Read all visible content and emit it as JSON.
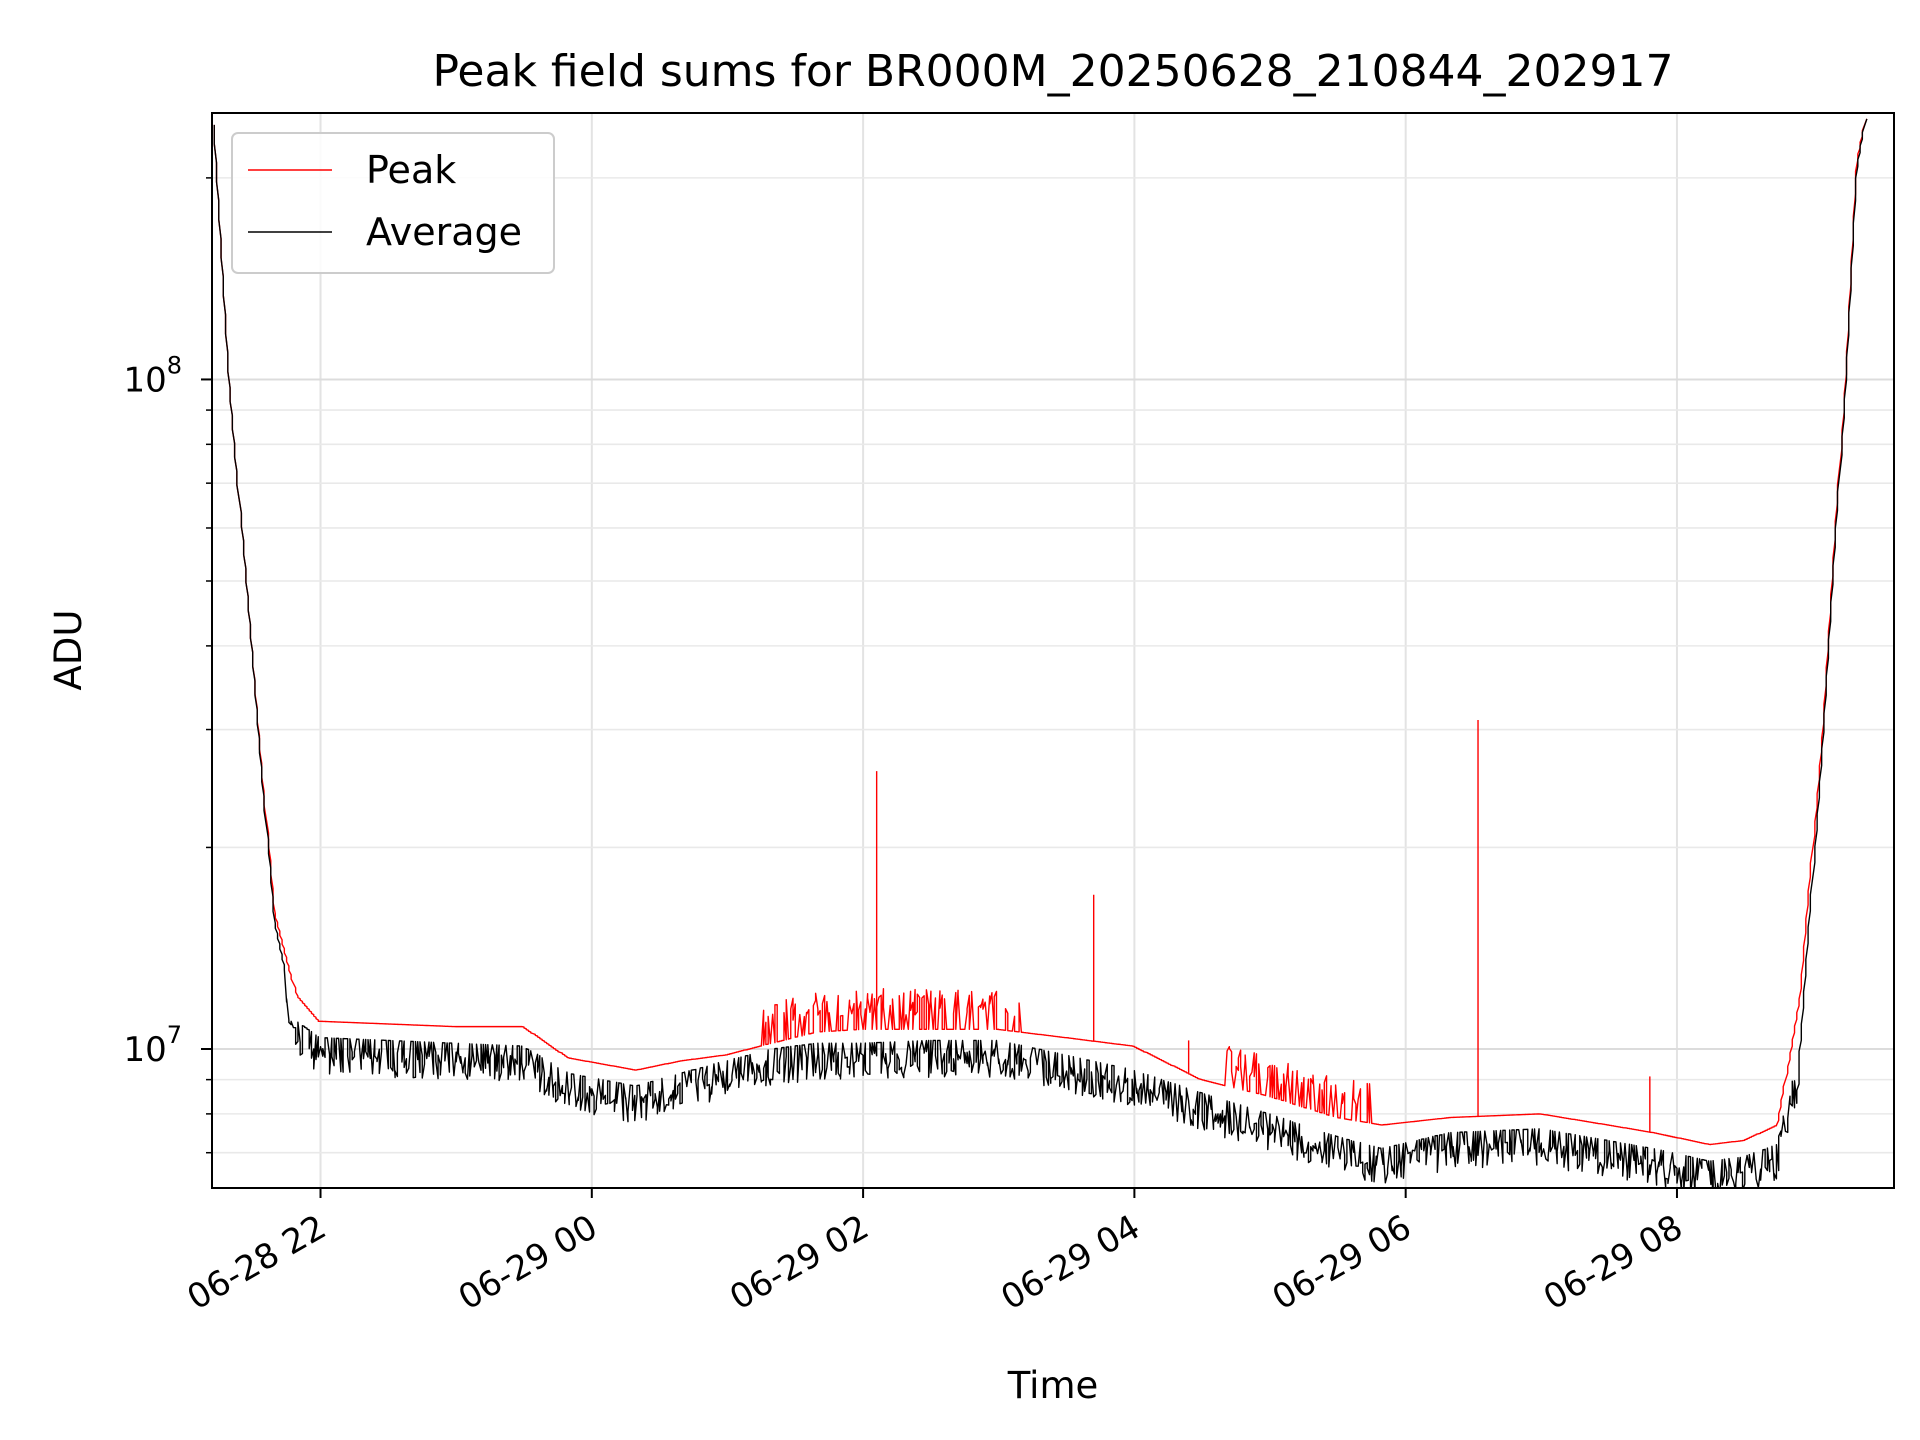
{
  "chart_data": {
    "type": "line",
    "title": "Peak field sums for BR000M_20250628_210844_202917",
    "xlabel": "Time",
    "ylabel": "ADU",
    "y_scale": "log",
    "ylim": [
      6200000,
      250000000
    ],
    "xlim": [
      "2025-06-28 21:12",
      "2025-06-29 09:36"
    ],
    "grid": true,
    "legend": {
      "placement": "top-left",
      "entries": [
        "Peak",
        "Average"
      ]
    },
    "x_ticks": [
      {
        "t": "2025-06-28 22:00",
        "label": "06-28 22"
      },
      {
        "t": "2025-06-29 00:00",
        "label": "06-29 00"
      },
      {
        "t": "2025-06-29 02:00",
        "label": "06-29 02"
      },
      {
        "t": "2025-06-29 04:00",
        "label": "06-29 04"
      },
      {
        "t": "2025-06-29 06:00",
        "label": "06-29 06"
      },
      {
        "t": "2025-06-29 08:00",
        "label": "06-29 08"
      }
    ],
    "y_ticks": [
      {
        "v": 10000000,
        "base": "10",
        "exp": "7"
      },
      {
        "v": 100000000,
        "base": "10",
        "exp": "8"
      }
    ],
    "series": [
      {
        "name": "Peak",
        "color": "#ff0000",
        "x": [
          "2025-06-28 21:13",
          "2025-06-28 21:20",
          "2025-06-28 21:30",
          "2025-06-28 21:40",
          "2025-06-28 21:50",
          "2025-06-28 22:00",
          "2025-06-28 22:30",
          "2025-06-28 23:00",
          "2025-06-28 23:30",
          "2025-06-28 23:50",
          "2025-06-29 00:20",
          "2025-06-29 00:40",
          "2025-06-29 01:00",
          "2025-06-29 01:20",
          "2025-06-29 01:40",
          "2025-06-29 02:00",
          "2025-06-29 02:30",
          "2025-06-29 03:00",
          "2025-06-29 03:30",
          "2025-06-29 04:00",
          "2025-06-29 04:30",
          "2025-06-29 05:00",
          "2025-06-29 05:30",
          "2025-06-29 05:50",
          "2025-06-29 06:20",
          "2025-06-29 07:00",
          "2025-06-29 07:30",
          "2025-06-29 07:50",
          "2025-06-29 08:15",
          "2025-06-29 08:30",
          "2025-06-29 08:45",
          "2025-06-29 08:55",
          "2025-06-29 09:05",
          "2025-06-29 09:15",
          "2025-06-29 09:20",
          "2025-06-29 09:24"
        ],
        "y": [
          240000000,
          100000000,
          40000000,
          16000000,
          12000000,
          11000000,
          10900000,
          10800000,
          10800000,
          9700000,
          9300000,
          9600000,
          9800000,
          10200000,
          10600000,
          10700000,
          10700000,
          10700000,
          10400000,
          10100000,
          9000000,
          8500000,
          7900000,
          7700000,
          7900000,
          8000000,
          7700000,
          7500000,
          7200000,
          7300000,
          7700000,
          12000000,
          30000000,
          100000000,
          210000000,
          245000000
        ],
        "spikes": [
          {
            "t": "2025-06-29 02:06",
            "v": 26000000
          },
          {
            "t": "2025-06-29 03:42",
            "v": 17000000
          },
          {
            "t": "2025-06-29 04:24",
            "v": 10300000
          },
          {
            "t": "2025-06-29 06:32",
            "v": 31000000
          },
          {
            "t": "2025-06-29 07:48",
            "v": 9100000
          }
        ]
      },
      {
        "name": "Average",
        "color": "#000000",
        "x": [
          "2025-06-28 21:13",
          "2025-06-28 21:20",
          "2025-06-28 21:30",
          "2025-06-28 21:40",
          "2025-06-28 21:50",
          "2025-06-28 22:00",
          "2025-06-28 22:30",
          "2025-06-28 23:00",
          "2025-06-28 23:30",
          "2025-06-28 23:50",
          "2025-06-29 00:20",
          "2025-06-29 00:40",
          "2025-06-29 01:00",
          "2025-06-29 01:20",
          "2025-06-29 01:40",
          "2025-06-29 02:00",
          "2025-06-29 02:30",
          "2025-06-29 03:00",
          "2025-06-29 03:30",
          "2025-06-29 04:00",
          "2025-06-29 04:30",
          "2025-06-29 05:00",
          "2025-06-29 05:30",
          "2025-06-29 05:50",
          "2025-06-29 06:20",
          "2025-06-29 07:00",
          "2025-06-29 07:30",
          "2025-06-29 07:50",
          "2025-06-29 08:15",
          "2025-06-29 08:30",
          "2025-06-29 08:45",
          "2025-06-29 08:55",
          "2025-06-29 09:05",
          "2025-06-29 09:15",
          "2025-06-29 09:20",
          "2025-06-29 09:24"
        ],
        "y": [
          240000000,
          100000000,
          40000000,
          15500000,
          11000000,
          10400000,
          10300000,
          10200000,
          10100000,
          9200000,
          8800000,
          9200000,
          9600000,
          10000000,
          10200000,
          10200000,
          10300000,
          10300000,
          9800000,
          9300000,
          8600000,
          8000000,
          7400000,
          7100000,
          7500000,
          7600000,
          7300000,
          7100000,
          6800000,
          6900000,
          7200000,
          10000000,
          29000000,
          98000000,
          205000000,
          245000000
        ]
      }
    ]
  }
}
